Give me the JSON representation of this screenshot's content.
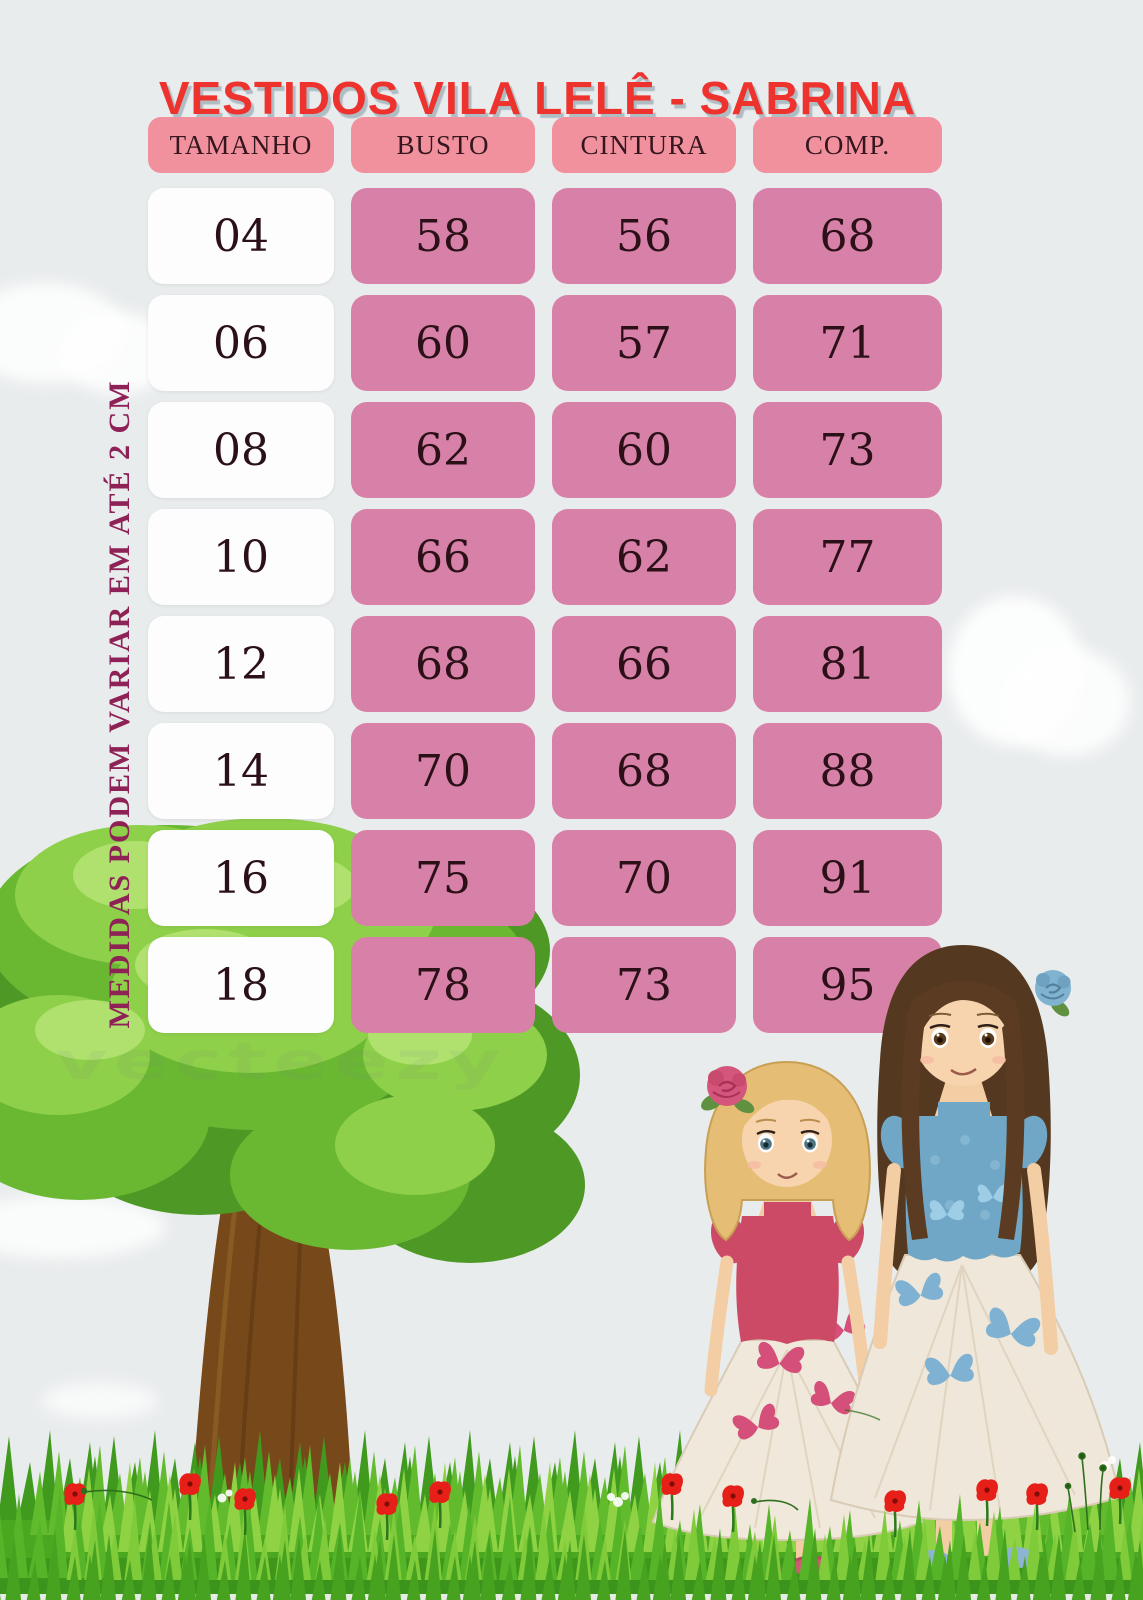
{
  "poster": {
    "title": "VESTIDOS VILA LELÊ - SABRINA",
    "side_note": "MEDIDAS PODEM VARIAR EM ATÉ 2 CM",
    "watermark": "vecteezy"
  },
  "size_table": {
    "headers": [
      "TAMANHO",
      "BUSTO",
      "CINTURA",
      "COMP."
    ],
    "rows": [
      {
        "tamanho": "04",
        "busto": "58",
        "cintura": "56",
        "comp": "68"
      },
      {
        "tamanho": "06",
        "busto": "60",
        "cintura": "57",
        "comp": "71"
      },
      {
        "tamanho": "08",
        "busto": "62",
        "cintura": "60",
        "comp": "73"
      },
      {
        "tamanho": "10",
        "busto": "66",
        "cintura": "62",
        "comp": "77"
      },
      {
        "tamanho": "12",
        "busto": "68",
        "cintura": "66",
        "comp": "81"
      },
      {
        "tamanho": "14",
        "busto": "70",
        "cintura": "68",
        "comp": "88"
      },
      {
        "tamanho": "16",
        "busto": "75",
        "cintura": "70",
        "comp": "91"
      },
      {
        "tamanho": "18",
        "busto": "78",
        "cintura": "73",
        "comp": "95"
      }
    ]
  },
  "chart_data": {
    "type": "table",
    "title": "VESTIDOS VILA LELÊ - SABRINA",
    "columns": [
      "TAMANHO",
      "BUSTO",
      "CINTURA",
      "COMP."
    ],
    "rows": [
      [
        "04",
        58,
        56,
        68
      ],
      [
        "06",
        60,
        57,
        71
      ],
      [
        "08",
        62,
        60,
        73
      ],
      [
        "10",
        66,
        62,
        77
      ],
      [
        "12",
        68,
        66,
        81
      ],
      [
        "14",
        70,
        68,
        88
      ],
      [
        "16",
        75,
        70,
        91
      ],
      [
        "18",
        78,
        73,
        95
      ]
    ],
    "note": "MEDIDAS PODEM VARIAR EM ATÉ 2 CM",
    "units": "cm"
  },
  "colors": {
    "background": "#e9eced",
    "title_red": "#ee332e",
    "header_pink": "#f2919e",
    "cell_pink": "#d881a8",
    "cell_text": "#2b1018",
    "note_magenta": "#8e2257"
  }
}
